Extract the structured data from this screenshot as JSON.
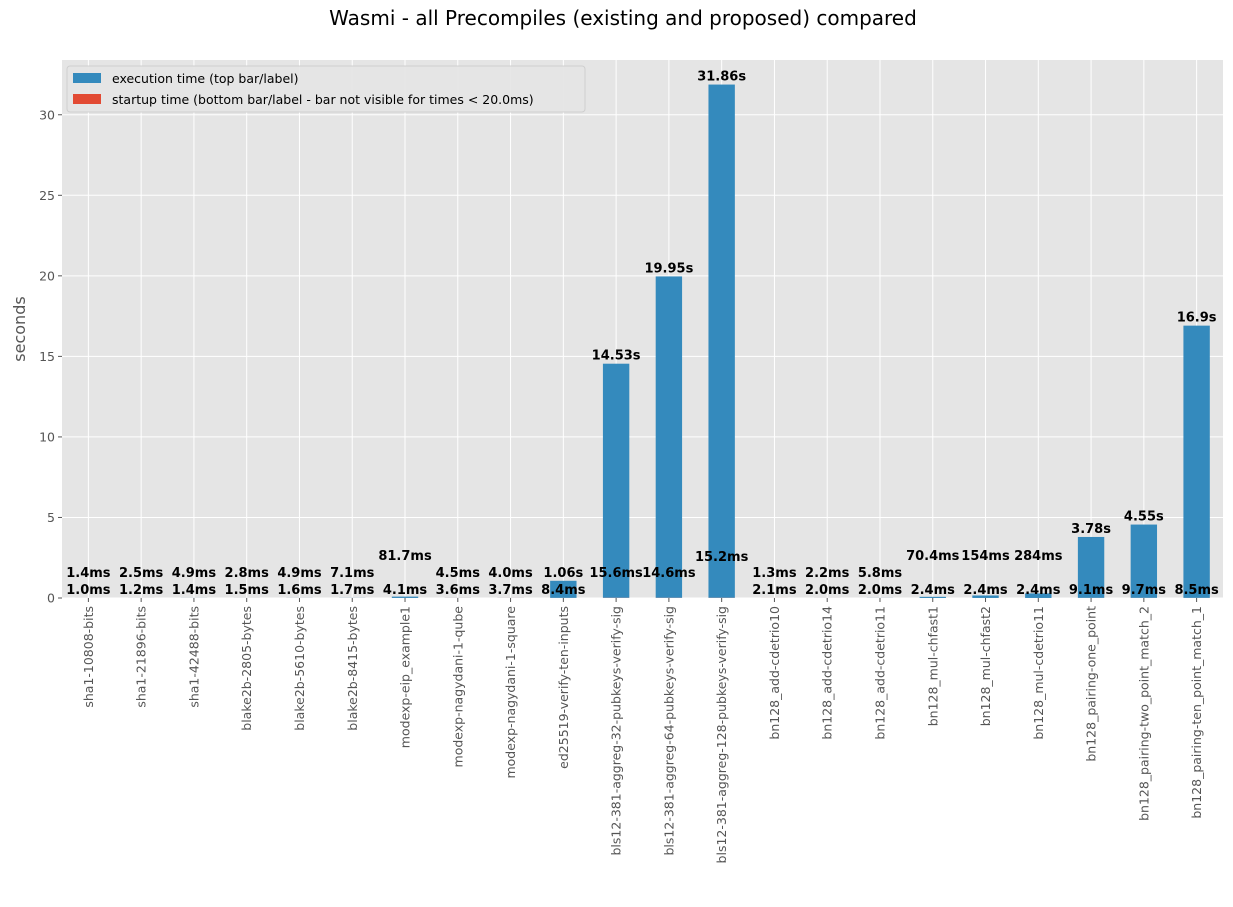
{
  "chart_data": {
    "type": "bar",
    "stacked": true,
    "title": "Wasmi - all Precompiles (existing and proposed) compared",
    "xlabel": "",
    "ylabel": "seconds",
    "ylim": [
      0,
      33.4
    ],
    "yticks": [
      0,
      5,
      10,
      15,
      20,
      25,
      30
    ],
    "grid": true,
    "legend_position": "upper-left",
    "categories": [
      "sha1-10808-bits",
      "sha1-21896-bits",
      "sha1-42488-bits",
      "blake2b-2805-bytes",
      "blake2b-5610-bytes",
      "blake2b-8415-bytes",
      "modexp-eip_example1",
      "modexp-nagydani-1-qube",
      "modexp-nagydani-1-square",
      "ed25519-verify-ten-inputs",
      "bls12-381-aggreg-32-pubkeys-verify-sig",
      "bls12-381-aggreg-64-pubkeys-verify-sig",
      "bls12-381-aggreg-128-pubkeys-verify-sig",
      "bn128_add-cdetrio10",
      "bn128_add-cdetrio14",
      "bn128_add-cdetrio11",
      "bn128_mul-chfast1",
      "bn128_mul-chfast2",
      "bn128_mul-cdetrio11",
      "bn128_pairing-one_point",
      "bn128_pairing-two_point_match_2",
      "bn128_pairing-ten_point_match_1"
    ],
    "series": [
      {
        "name": "startup time (bottom bar/label - bar not visible for times < 20.0ms)",
        "color": "#E24A33",
        "values": [
          0.001,
          0.0012,
          0.0014,
          0.0015,
          0.0016,
          0.0017,
          0.0041,
          0.0036,
          0.0037,
          0.0084,
          0.0156,
          0.0146,
          0.0152,
          0.0021,
          0.002,
          0.002,
          0.0024,
          0.0024,
          0.0024,
          0.0091,
          0.0097,
          0.0085
        ],
        "labels": [
          "1.0ms",
          "1.2ms",
          "1.4ms",
          "1.5ms",
          "1.6ms",
          "1.7ms",
          "4.1ms",
          "3.6ms",
          "3.7ms",
          "8.4ms",
          "15.6ms",
          "14.6ms",
          "15.2ms",
          "2.1ms",
          "2.0ms",
          "2.0ms",
          "2.4ms",
          "2.4ms",
          "2.4ms",
          "9.1ms",
          "9.7ms",
          "8.5ms"
        ]
      },
      {
        "name": "execution time (top bar/label)",
        "color": "#348ABD",
        "values": [
          0.0014,
          0.0025,
          0.0049,
          0.0028,
          0.0049,
          0.0071,
          0.0817,
          0.0045,
          0.004,
          1.06,
          14.53,
          19.95,
          31.86,
          0.0013,
          0.0022,
          0.0058,
          0.0704,
          0.154,
          0.284,
          3.78,
          4.55,
          16.9
        ],
        "labels": [
          "1.4ms",
          "2.5ms",
          "4.9ms",
          "2.8ms",
          "4.9ms",
          "7.1ms",
          "81.7ms",
          "4.5ms",
          "4.0ms",
          "1.06s",
          "14.53s",
          "19.95s",
          "31.86s",
          "1.3ms",
          "2.2ms",
          "5.8ms",
          "70.4ms",
          "154ms",
          "284ms",
          "3.78s",
          "4.55s",
          "16.9s"
        ]
      }
    ],
    "legend": [
      {
        "name": "execution time (top bar/label)",
        "color": "#348ABD"
      },
      {
        "name": "startup time (bottom bar/label - bar not visible for times < 20.0ms)",
        "color": "#E24A33"
      }
    ]
  }
}
